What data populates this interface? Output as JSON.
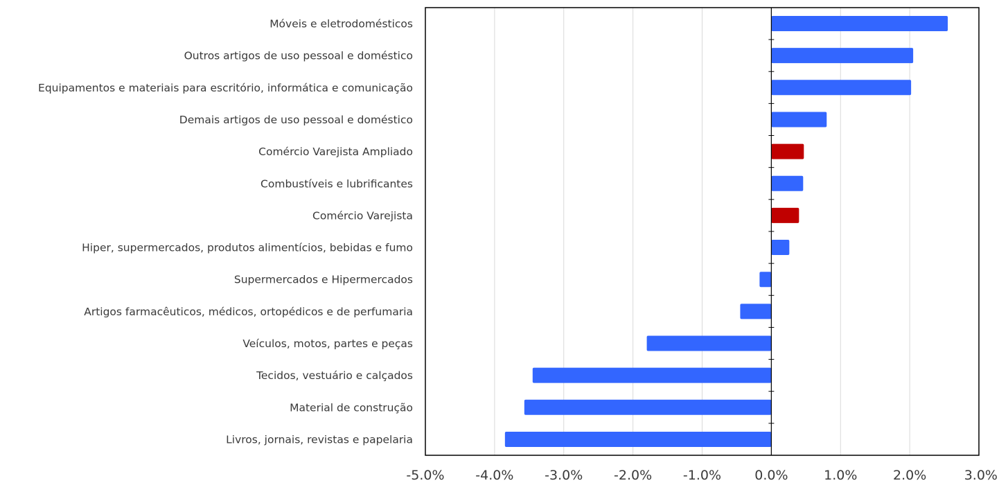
{
  "chart_data": {
    "type": "bar",
    "orientation": "horizontal",
    "title": "",
    "xlabel": "",
    "ylabel": "",
    "xlim": [
      -5.0,
      3.0
    ],
    "x_ticks": [
      -5,
      -4,
      -3,
      -2,
      -1,
      0,
      1,
      2,
      3
    ],
    "x_tick_labels": [
      "-5.0%",
      "-4.0%",
      "-3.0%",
      "-2.0%",
      "-1.0%",
      "0.0%",
      "1.0%",
      "2.0%",
      "3.0%"
    ],
    "grid": "vertical",
    "legend": "none",
    "colors": {
      "sector": "#3366ff",
      "aggregate": "#c00000"
    },
    "categories": [
      "Móveis e eletrodomésticos",
      "Outros artigos de uso pessoal e doméstico",
      "Equipamentos e materiais para escritório, informática e comunicação",
      "Demais artigos de uso pessoal e doméstico",
      "Comércio Varejista Ampliado",
      "Combustíveis e lubrificantes",
      "Comércio Varejista",
      "Hiper, supermercados, produtos alimentícios, bebidas e fumo",
      "Supermercados e Hipermercados",
      "Artigos farmacêuticos, médicos, ortopédicos e de perfumaria",
      "Veículos, motos, partes e peças",
      "Tecidos, vestuário e calçados",
      "Material de construção",
      "Livros, jornais, revistas e papelaria"
    ],
    "values": [
      2.55,
      2.05,
      2.02,
      0.8,
      0.47,
      0.46,
      0.4,
      0.26,
      -0.17,
      -0.45,
      -1.8,
      -3.45,
      -3.57,
      -3.85
    ],
    "highlight": [
      false,
      false,
      false,
      false,
      true,
      false,
      true,
      false,
      false,
      false,
      false,
      false,
      false,
      false
    ]
  }
}
